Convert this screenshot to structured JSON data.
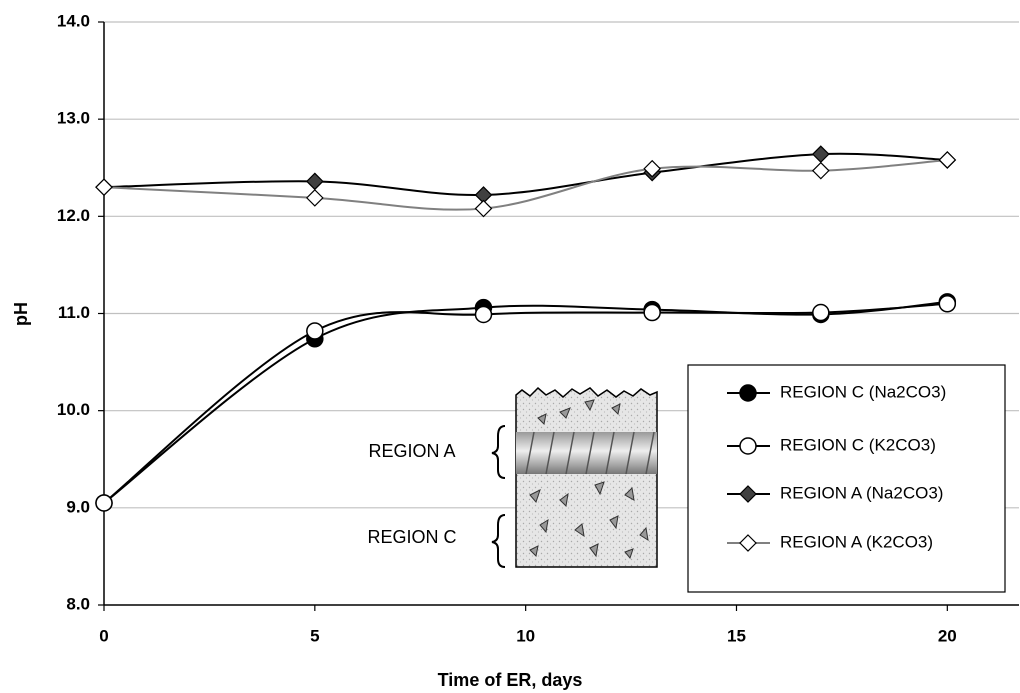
{
  "chart_data": {
    "type": "line",
    "xlabel": "Time of ER, days",
    "ylabel": "pH",
    "xlim": [
      0,
      21.7
    ],
    "ylim": [
      8,
      14
    ],
    "xticks": [
      0,
      5,
      10,
      15,
      20
    ],
    "yticks": [
      {
        "value": 8,
        "label": "8.0"
      },
      {
        "value": 9,
        "label": "9.0"
      },
      {
        "value": 10,
        "label": "10.0"
      },
      {
        "value": 11,
        "label": "11.0"
      },
      {
        "value": 12,
        "label": "12.0"
      },
      {
        "value": 13,
        "label": "13.0"
      },
      {
        "value": 14,
        "label": "14.0"
      }
    ],
    "grid": true,
    "legend": "lower right",
    "smooth": true,
    "x": [
      0,
      5,
      9,
      13,
      17,
      20
    ],
    "series": [
      {
        "name": "REGION C (Na2CO3)",
        "color": "#000000",
        "marker": "circle",
        "fill": "#000000",
        "values": [
          9.05,
          10.74,
          11.06,
          11.04,
          10.99,
          11.12
        ]
      },
      {
        "name": "REGION C (K2CO3)",
        "color": "#000000",
        "marker": "circle",
        "fill": "#ffffff",
        "values": [
          9.05,
          10.82,
          10.99,
          11.01,
          11.01,
          11.1
        ]
      },
      {
        "name": "REGION A (Na2CO3)",
        "color": "#000000",
        "marker": "diamond",
        "fill": "#404040",
        "values": [
          12.3,
          12.36,
          12.22,
          12.45,
          12.64,
          12.58
        ]
      },
      {
        "name": "REGION A (K2CO3)",
        "color": "#808080",
        "marker": "diamond",
        "fill": "#ffffff",
        "values": [
          12.3,
          12.19,
          12.08,
          12.49,
          12.47,
          12.58
        ]
      }
    ],
    "annotations": [
      "REGION A",
      "REGION C"
    ]
  }
}
